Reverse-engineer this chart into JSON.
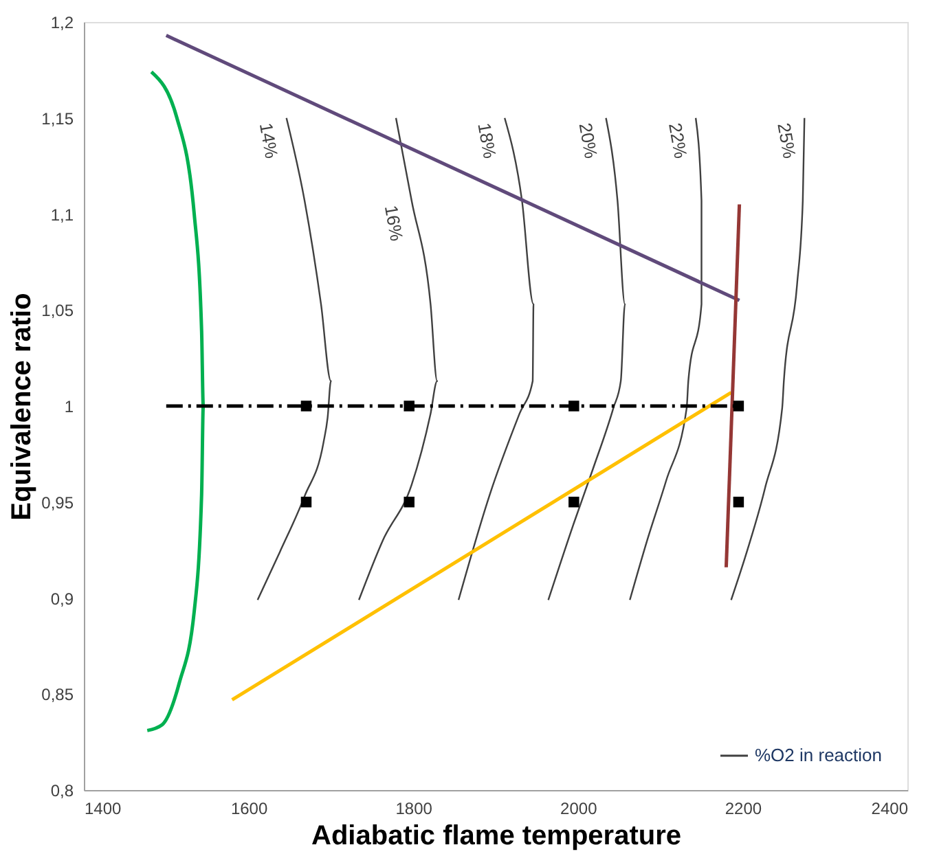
{
  "chart_data": {
    "type": "line",
    "xlabel": "Adiabatic flame temperature",
    "ylabel": "Equivalence ratio",
    "xlim": [
      1400,
      2400
    ],
    "xticks": [
      1400,
      1600,
      1800,
      2000,
      2200,
      2400
    ],
    "ylim": [
      0.8,
      1.2
    ],
    "yticks": [
      {
        "value": 0.8,
        "label": "0,8"
      },
      {
        "value": 0.85,
        "label": "0,85"
      },
      {
        "value": 0.9,
        "label": "0,9"
      },
      {
        "value": 0.95,
        "label": "0,95"
      },
      {
        "value": 1,
        "label": "1"
      },
      {
        "value": 1.05,
        "label": "1,05"
      },
      {
        "value": 1.1,
        "label": "1,1"
      },
      {
        "value": 1.15,
        "label": "1,15"
      },
      {
        "value": 1.2,
        "label": "1,2"
      }
    ],
    "grid": false,
    "legend": "bottom right",
    "marker": "none",
    "line_style": "solid",
    "series": [
      {
        "name": "%O2 in reaction",
        "color": "#404040",
        "x": [
          1646,
          1668,
          1688,
          1700,
          1696,
          1691,
          1668,
          1638,
          1611
        ],
        "values": [
          1.15,
          1.107,
          1.053,
          1.013,
          0.994,
          0.981,
          0.953,
          0.924,
          0.899
        ]
      },
      {
        "color": "#404040",
        "x": [
          1779,
          1798,
          1821,
          1829,
          1821,
          1798,
          1763,
          1734
        ],
        "values": [
          1.15,
          1.107,
          1.053,
          1.013,
          0.996,
          0.959,
          0.93,
          0.899
        ]
      },
      {
        "color": "#404040",
        "x": [
          1911,
          1932,
          1946,
          1945,
          1929,
          1893,
          1855
        ],
        "values": [
          1.15,
          1.107,
          1.053,
          1.013,
          0.996,
          0.954,
          0.899
        ]
      },
      {
        "color": "#404040",
        "x": [
          2034,
          2048,
          2057,
          2052,
          2043,
          2018,
          1995,
          1964
        ],
        "values": [
          1.15,
          1.107,
          1.053,
          1.013,
          0.999,
          0.967,
          0.939,
          0.899
        ]
      },
      {
        "color": "#404040",
        "x": [
          2143,
          2150,
          2150,
          2134,
          2132,
          2107,
          2084,
          2063
        ],
        "values": [
          1.15,
          1.107,
          1.053,
          1.013,
          0.999,
          0.961,
          0.93,
          0.899
        ]
      },
      {
        "color": "#404040",
        "x": [
          2275,
          2273,
          2266,
          2250,
          2248,
          2227,
          2205,
          2186
        ],
        "values": [
          1.15,
          1.107,
          1.063,
          1.013,
          0.999,
          0.957,
          0.924,
          0.899
        ]
      },
      {
        "color": "#00b050",
        "x": [
          1482,
          1513,
          1534,
          1543,
          1545,
          1543,
          1534,
          1516,
          1495,
          1477
        ],
        "values": [
          1.174,
          1.15,
          1.1,
          1.039,
          1.0,
          0.954,
          0.893,
          0.856,
          0.834,
          0.831
        ]
      },
      {
        "color": "#604a7b",
        "x": [
          1500,
          2196
        ],
        "values": [
          1.193,
          1.055
        ]
      },
      {
        "color": "#ffc000",
        "x": [
          1580,
          2186
        ],
        "values": [
          0.847,
          1.007
        ]
      },
      {
        "color": "#953735",
        "x": [
          2196,
          2180
        ],
        "values": [
          1.105,
          0.916
        ]
      },
      {
        "color": "#000000",
        "line_style": "dashed",
        "x": [
          1500,
          2196
        ],
        "values": [
          1.0,
          1.0
        ]
      },
      {
        "type": "scatter",
        "marker": "square",
        "color": "#000000",
        "x": [
          1670,
          1795,
          1995,
          2195,
          1670,
          1795,
          1995,
          2195
        ],
        "values": [
          1,
          1,
          1,
          1,
          0.95,
          0.95,
          0.95,
          0.95
        ]
      }
    ],
    "annotations": [
      {
        "text": "14%",
        "x": 1646,
        "y": 1.15
      },
      {
        "text": "16%",
        "x": 1798,
        "y": 1.107
      },
      {
        "text": "18%",
        "x": 1911,
        "y": 1.15
      },
      {
        "text": "20%",
        "x": 2034,
        "y": 1.15
      },
      {
        "text": "22%",
        "x": 2143,
        "y": 1.15
      },
      {
        "text": "25%",
        "x": 2275,
        "y": 1.15
      }
    ]
  }
}
